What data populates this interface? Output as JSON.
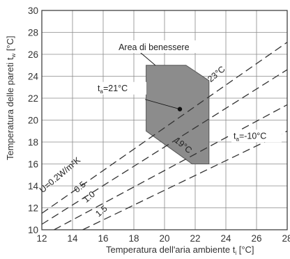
{
  "chart_data": {
    "type": "line",
    "xlabel": "Temperatura dell'aria ambiente t",
    "xlabel_sub": "i",
    "xlabel_unit": " [°C]",
    "ylabel": "Temperatura delle pareti t",
    "ylabel_sub": "w",
    "ylabel_unit": " [°C]",
    "xlim": [
      12,
      28
    ],
    "ylim": [
      10,
      30
    ],
    "x_ticks": [
      12,
      14,
      16,
      18,
      20,
      22,
      24,
      26,
      28
    ],
    "y_ticks": [
      10,
      12,
      14,
      16,
      18,
      20,
      22,
      24,
      26,
      28,
      30
    ],
    "grid": true,
    "comfort_area": {
      "label": "Area di benessere",
      "polygon": [
        [
          18.8,
          25
        ],
        [
          21.4,
          25
        ],
        [
          22.9,
          23.6
        ],
        [
          22.9,
          16
        ],
        [
          21.8,
          16
        ],
        [
          18.8,
          19
        ]
      ],
      "color": "#8c8c8c"
    },
    "marker": {
      "label": "t",
      "label_sub": "a",
      "label_rest": "=21°C",
      "x": 21,
      "y": 21
    },
    "series": [
      {
        "name": "U=0.2W/m²K",
        "x": [
          12,
          28
        ],
        "y": [
          11.5,
          27.1
        ]
      },
      {
        "name": "0.5",
        "x": [
          12,
          28
        ],
        "y": [
          10.5,
          24.6
        ]
      },
      {
        "name": "1.0",
        "x": [
          12,
          28
        ],
        "y": [
          9.4,
          21.4
        ]
      },
      {
        "name": "1.5",
        "x": [
          12,
          28
        ],
        "y": [
          8.2,
          19.0
        ]
      }
    ],
    "annotations": [
      {
        "text": "23°C",
        "x": 23.5,
        "y": 24.0,
        "rotate": -40
      },
      {
        "text": "19°C",
        "x": 21.1,
        "y": 17.5,
        "rotate": 40
      }
    ],
    "ta_outdoor": {
      "text_main": "t",
      "text_sub": "a",
      "text_rest": "=-10°C",
      "x": 24.5,
      "y": 18.3
    }
  }
}
